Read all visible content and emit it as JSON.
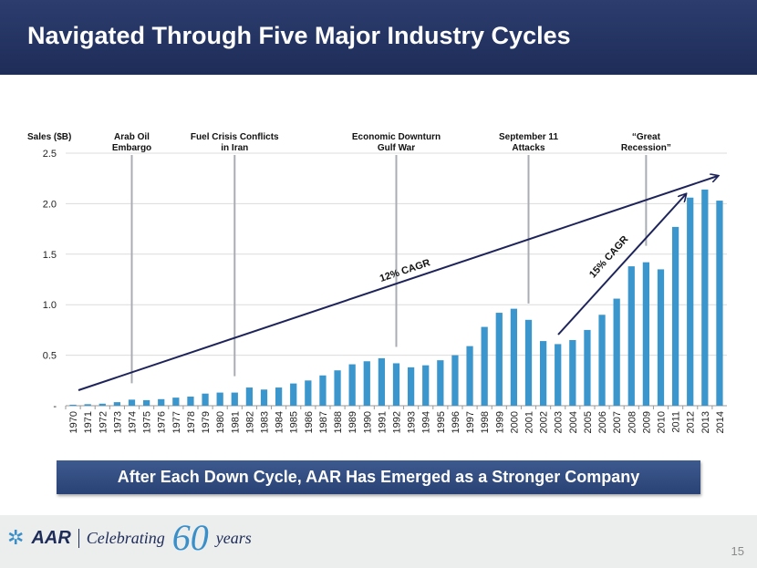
{
  "title": "Navigated Through Five Major Industry Cycles",
  "banner": "After Each Down Cycle, AAR Has Emerged as a Stronger Company",
  "footer": {
    "logo_text": "AAR",
    "celebrating": "Celebrating",
    "sixty": "60",
    "years": "years",
    "page_number": "15"
  },
  "chart_data": {
    "type": "bar",
    "ylabel": "Sales ($B)",
    "ylim": [
      0,
      2.5
    ],
    "yticks": [
      0,
      0.5,
      1.0,
      1.5,
      2.0,
      2.5
    ],
    "ytick_labels": [
      "-",
      "0.5",
      "1.0",
      "1.5",
      "2.0",
      "2.5"
    ],
    "grid": true,
    "color": "#3a96cc",
    "categories": [
      "1970",
      "1971",
      "1972",
      "1973",
      "1974",
      "1975",
      "1976",
      "1977",
      "1978",
      "1979",
      "1980",
      "1981",
      "1982",
      "1983",
      "1984",
      "1985",
      "1986",
      "1987",
      "1988",
      "1989",
      "1990",
      "1991",
      "1992",
      "1993",
      "1994",
      "1995",
      "1996",
      "1997",
      "1998",
      "1999",
      "2000",
      "2001",
      "2002",
      "2003",
      "2004",
      "2005",
      "2006",
      "2007",
      "2008",
      "2009",
      "2010",
      "2011",
      "2012",
      "2013",
      "2014"
    ],
    "values": [
      0.01,
      0.015,
      0.02,
      0.035,
      0.06,
      0.055,
      0.065,
      0.08,
      0.09,
      0.12,
      0.13,
      0.13,
      0.18,
      0.16,
      0.18,
      0.22,
      0.25,
      0.3,
      0.35,
      0.41,
      0.44,
      0.47,
      0.42,
      0.38,
      0.4,
      0.45,
      0.5,
      0.59,
      0.78,
      0.92,
      0.96,
      0.85,
      0.64,
      0.61,
      0.65,
      0.75,
      0.9,
      1.06,
      1.38,
      1.42,
      1.35,
      1.77,
      2.06,
      2.14,
      2.03
    ],
    "events": [
      {
        "year": "1974",
        "label": [
          "Arab Oil",
          "Embargo"
        ]
      },
      {
        "year": "1981",
        "label": [
          "Fuel Crisis Conflicts",
          "in Iran"
        ]
      },
      {
        "year": "1992",
        "label": [
          "Economic Downturn",
          "Gulf War"
        ]
      },
      {
        "year": "2001",
        "label": [
          "September 11",
          "Attacks"
        ]
      },
      {
        "year": "2009",
        "label": [
          "“Great",
          "Recession”"
        ]
      }
    ],
    "annotations": [
      {
        "text": "12% CAGR",
        "from": "1970",
        "to": "2014"
      },
      {
        "text": "15% CAGR",
        "from": "2003",
        "to": "2012"
      }
    ]
  }
}
